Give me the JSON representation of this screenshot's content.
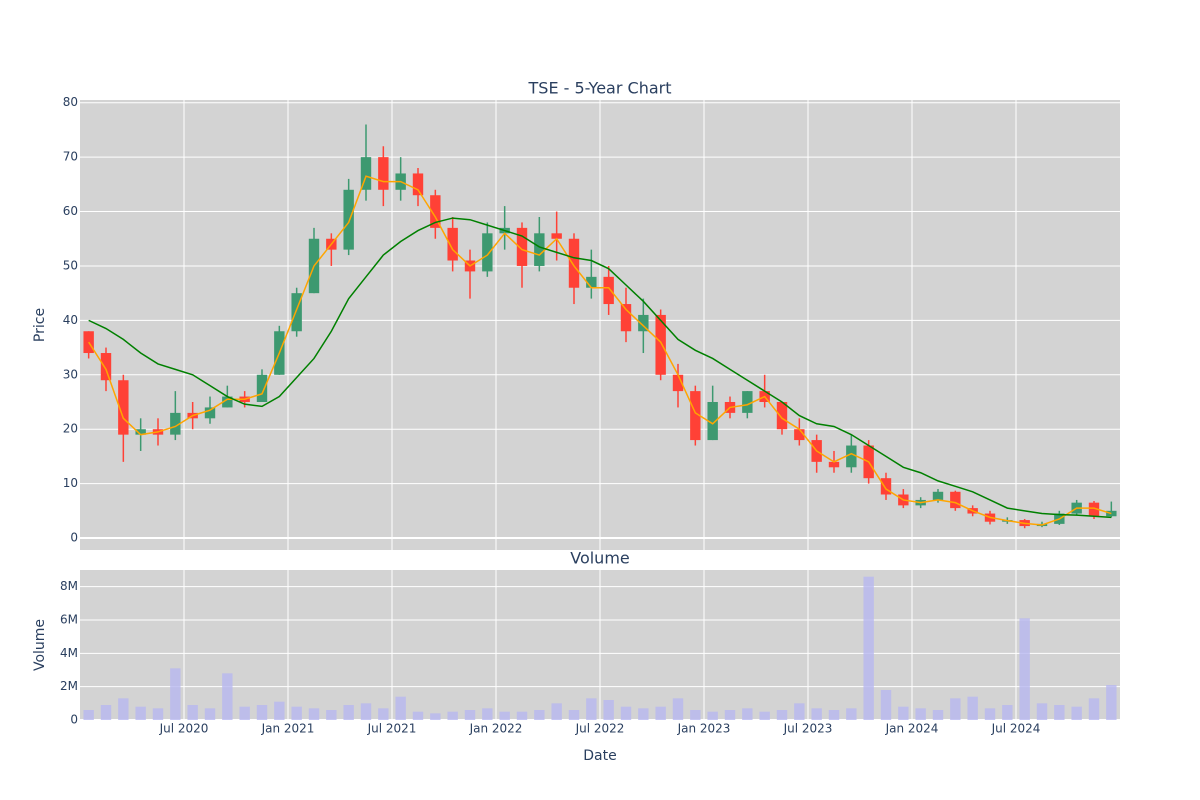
{
  "chart_data": [
    {
      "type": "candlestick",
      "title": "TSE - 5-Year Chart",
      "y_label": "Price",
      "x": [
        "2020-01",
        "2020-02",
        "2020-03",
        "2020-04",
        "2020-05",
        "2020-06",
        "2020-07",
        "2020-08",
        "2020-09",
        "2020-10",
        "2020-11",
        "2020-12",
        "2021-01",
        "2021-02",
        "2021-03",
        "2021-04",
        "2021-05",
        "2021-06",
        "2021-07",
        "2021-08",
        "2021-09",
        "2021-10",
        "2021-11",
        "2021-12",
        "2022-01",
        "2022-02",
        "2022-03",
        "2022-04",
        "2022-05",
        "2022-06",
        "2022-07",
        "2022-08",
        "2022-09",
        "2022-10",
        "2022-11",
        "2022-12",
        "2023-01",
        "2023-02",
        "2023-03",
        "2023-04",
        "2023-05",
        "2023-06",
        "2023-07",
        "2023-08",
        "2023-09",
        "2023-10",
        "2023-11",
        "2023-12",
        "2024-01",
        "2024-02",
        "2024-03",
        "2024-04",
        "2024-05",
        "2024-06",
        "2024-07",
        "2024-08",
        "2024-09",
        "2024-10",
        "2024-11",
        "2024-12"
      ],
      "open": [
        38,
        34,
        29,
        19,
        20,
        19,
        23,
        22,
        24,
        26,
        25,
        30,
        38,
        45,
        55,
        53,
        64,
        70,
        64,
        67,
        63,
        57,
        51,
        49,
        56,
        57,
        50,
        56,
        55,
        46,
        48,
        43,
        38,
        41,
        30,
        27,
        18,
        25,
        23,
        27,
        25,
        20,
        18,
        14,
        13,
        17,
        11,
        8,
        6,
        7,
        8.5,
        5.5,
        4.5,
        3,
        3.3,
        2.2,
        2.6,
        4.5,
        6.5,
        4
      ],
      "high": [
        38,
        35,
        30,
        22,
        22,
        27,
        25,
        26,
        28,
        27,
        31,
        39,
        46,
        57,
        56,
        66,
        76,
        72,
        70,
        68,
        64,
        59,
        53,
        58,
        61,
        58,
        59,
        60,
        56,
        53,
        50,
        46,
        44,
        42,
        32,
        28,
        28,
        26,
        27,
        30,
        25,
        22,
        19,
        16,
        19,
        18,
        12,
        9,
        7.5,
        9,
        8.7,
        6,
        5,
        3.8,
        3.5,
        3,
        5,
        7,
        6.8,
        6.7
      ],
      "low": [
        33,
        27,
        14,
        16,
        17,
        18,
        20,
        21,
        24,
        24,
        25,
        30,
        37,
        45,
        50,
        52,
        62,
        61,
        62,
        61,
        55,
        49,
        44,
        48,
        53,
        46,
        49,
        51,
        43,
        44,
        41,
        36,
        34,
        29,
        24,
        17,
        18,
        22,
        22,
        24,
        19,
        17,
        12,
        12,
        12,
        10,
        7,
        5.5,
        5.5,
        6.5,
        5,
        4,
        2.5,
        2.6,
        1.8,
        2,
        2.4,
        4.2,
        3.5,
        3.8
      ],
      "close": [
        34,
        29,
        19,
        20,
        19,
        23,
        22,
        24,
        26,
        25,
        30,
        38,
        45,
        55,
        53,
        64,
        70,
        64,
        67,
        63,
        57,
        51,
        49,
        56,
        57,
        50,
        56,
        55,
        46,
        48,
        43,
        38,
        41,
        30,
        27,
        18,
        25,
        23,
        27,
        25,
        20,
        18,
        14,
        13,
        17,
        11,
        8,
        6,
        7,
        8.5,
        5.5,
        4.5,
        3,
        3.3,
        2.2,
        2.6,
        4.5,
        6.5,
        4,
        5
      ],
      "increasing_color": "#3d9970",
      "decreasing_color": "#ff4136",
      "lines": [
        {
          "color": "#ffa500",
          "values": [
            36,
            31,
            22,
            19,
            19.5,
            20.5,
            22.5,
            23.5,
            25.5,
            25.5,
            26.5,
            34,
            42,
            50,
            54,
            58,
            66.5,
            65.5,
            65.5,
            64,
            59,
            53,
            50,
            52,
            56,
            53,
            52,
            55,
            50,
            46,
            46,
            42,
            39,
            36,
            30,
            23,
            21,
            24,
            24.5,
            26,
            22,
            20,
            16,
            14,
            15.5,
            14,
            9,
            7,
            6.5,
            7,
            6.5,
            5,
            3.8,
            3.2,
            2.7,
            2.4,
            3.5,
            5.5,
            5.5,
            4.5
          ]
        },
        {
          "color": "#008000",
          "values": [
            40,
            38.5,
            36.5,
            34,
            32,
            31,
            30,
            28,
            26,
            24.6,
            24.2,
            26,
            29.5,
            33,
            38,
            44,
            48,
            52,
            54.5,
            56.5,
            58,
            58.8,
            58.5,
            57.5,
            56.5,
            55.5,
            53.5,
            52.5,
            51.5,
            51,
            49.5,
            46.5,
            43.5,
            40,
            36.5,
            34.5,
            33,
            31,
            29,
            27,
            25,
            22.5,
            21,
            20.5,
            19,
            17,
            15,
            13,
            12,
            10.5,
            9.5,
            8.5,
            7,
            5.5,
            5,
            4.5,
            4.3,
            4.2,
            4,
            3.8
          ]
        }
      ],
      "xlim": [
        "2020-01",
        "2025-01"
      ],
      "ylim": [
        -2.2,
        80.5
      ],
      "yticks": [
        0,
        10,
        20,
        30,
        40,
        50,
        60,
        70,
        80
      ],
      "grid": true
    },
    {
      "type": "bar",
      "title": "Volume",
      "y_label": "Volume",
      "x_label": "Date",
      "x": [
        "2020-01",
        "2020-02",
        "2020-03",
        "2020-04",
        "2020-05",
        "2020-06",
        "2020-07",
        "2020-08",
        "2020-09",
        "2020-10",
        "2020-11",
        "2020-12",
        "2021-01",
        "2021-02",
        "2021-03",
        "2021-04",
        "2021-05",
        "2021-06",
        "2021-07",
        "2021-08",
        "2021-09",
        "2021-10",
        "2021-11",
        "2021-12",
        "2022-01",
        "2022-02",
        "2022-03",
        "2022-04",
        "2022-05",
        "2022-06",
        "2022-07",
        "2022-08",
        "2022-09",
        "2022-10",
        "2022-11",
        "2022-12",
        "2023-01",
        "2023-02",
        "2023-03",
        "2023-04",
        "2023-05",
        "2023-06",
        "2023-07",
        "2023-08",
        "2023-09",
        "2023-10",
        "2023-11",
        "2023-12",
        "2024-01",
        "2024-02",
        "2024-03",
        "2024-04",
        "2024-05",
        "2024-06",
        "2024-07",
        "2024-08",
        "2024-09",
        "2024-10",
        "2024-11",
        "2024-12"
      ],
      "values": [
        600000,
        900000,
        1300000,
        800000,
        700000,
        3100000,
        900000,
        700000,
        2800000,
        800000,
        900000,
        1100000,
        800000,
        700000,
        600000,
        900000,
        1000000,
        700000,
        1400000,
        500000,
        400000,
        500000,
        600000,
        700000,
        500000,
        500000,
        600000,
        1000000,
        600000,
        1300000,
        1200000,
        800000,
        700000,
        800000,
        1300000,
        600000,
        500000,
        600000,
        700000,
        500000,
        600000,
        1000000,
        700000,
        600000,
        700000,
        8600000,
        1800000,
        800000,
        700000,
        600000,
        1300000,
        1400000,
        700000,
        900000,
        6100000,
        1000000,
        900000,
        800000,
        1300000,
        2100000
      ],
      "color": "#b8b8f0",
      "xlim": [
        "2020-01",
        "2025-01"
      ],
      "xticks": [
        {
          "value": "2020-07",
          "label": "Jul 2020"
        },
        {
          "value": "2021-01",
          "label": "Jan 2021"
        },
        {
          "value": "2021-07",
          "label": "Jul 2021"
        },
        {
          "value": "2022-01",
          "label": "Jan 2022"
        },
        {
          "value": "2022-07",
          "label": "Jul 2022"
        },
        {
          "value": "2023-01",
          "label": "Jan 2023"
        },
        {
          "value": "2023-07",
          "label": "Jul 2023"
        },
        {
          "value": "2024-01",
          "label": "Jan 2024"
        },
        {
          "value": "2024-07",
          "label": "Jul 2024"
        }
      ],
      "ylim": [
        0,
        9000000
      ],
      "yticks": [
        0,
        {
          "value": 2000000,
          "label": "2M"
        },
        {
          "value": 4000000,
          "label": "4M"
        },
        {
          "value": 6000000,
          "label": "6M"
        },
        {
          "value": 8000000,
          "label": "8M"
        }
      ],
      "grid": true
    }
  ]
}
